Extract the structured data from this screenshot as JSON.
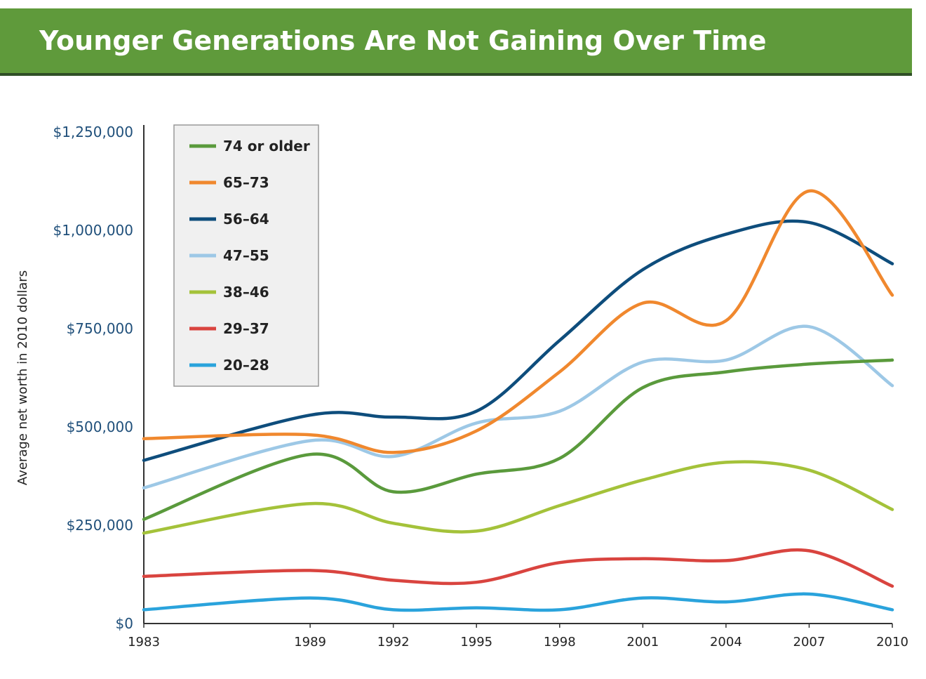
{
  "header": {
    "title": "Younger Generations Are Not Gaining Over Time"
  },
  "chart_data": {
    "type": "line",
    "title": "Younger Generations Are Not Gaining Over Time",
    "ylabel": "Average net worth in 2010 dollars",
    "xlabel": "",
    "x": [
      1983,
      1989,
      1992,
      1995,
      1998,
      2001,
      2004,
      2007,
      2010
    ],
    "x_tick_labels": [
      "1983",
      "1989",
      "1992",
      "1995",
      "1998",
      "2001",
      "2004",
      "2007",
      "2010"
    ],
    "ylim": [
      0,
      1250000
    ],
    "y_ticks": [
      0,
      250000,
      500000,
      750000,
      1000000,
      1250000
    ],
    "y_tick_labels": [
      "$0",
      "$250,000",
      "$500,000",
      "$750,000",
      "$1,000,000",
      "$1,250,000"
    ],
    "legend_position": "top-left",
    "grid": false,
    "series": [
      {
        "name": "74 or older",
        "color": "#5a9a3c",
        "values": [
          265000,
          430000,
          335000,
          380000,
          420000,
          600000,
          640000,
          660000,
          670000
        ]
      },
      {
        "name": "65–73",
        "color": "#f0882e",
        "values": [
          470000,
          480000,
          435000,
          490000,
          640000,
          815000,
          770000,
          1100000,
          835000
        ]
      },
      {
        "name": "56–64",
        "color": "#0e4d7c",
        "values": [
          415000,
          530000,
          525000,
          540000,
          720000,
          900000,
          990000,
          1020000,
          915000
        ]
      },
      {
        "name": "47–55",
        "color": "#9dc8e6",
        "values": [
          345000,
          465000,
          425000,
          510000,
          540000,
          665000,
          670000,
          755000,
          605000
        ]
      },
      {
        "name": "38–46",
        "color": "#a4c23a",
        "values": [
          230000,
          305000,
          255000,
          235000,
          300000,
          365000,
          410000,
          390000,
          290000
        ]
      },
      {
        "name": "29–37",
        "color": "#d9443f",
        "values": [
          120000,
          135000,
          110000,
          105000,
          155000,
          165000,
          160000,
          185000,
          95000
        ]
      },
      {
        "name": "20–28",
        "color": "#2aa3dc",
        "values": [
          35000,
          65000,
          35000,
          40000,
          35000,
          65000,
          55000,
          75000,
          35000
        ]
      }
    ]
  }
}
